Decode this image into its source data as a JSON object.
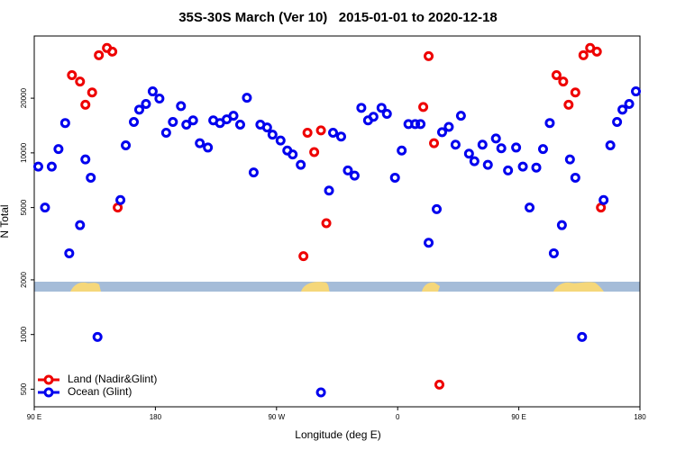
{
  "chart_data": {
    "type": "scatter",
    "title": "35S-30S March (Ver 10)   2015-01-01 to 2020-12-18",
    "xlabel": "Longitude (deg E)",
    "ylabel": "N Total",
    "log_y": true,
    "legend": "bottom-left",
    "xlim": [
      90,
      540
    ],
    "xticks": [
      {
        "value": 90,
        "label": "90 E"
      },
      {
        "value": 180,
        "label": "180"
      },
      {
        "value": 270,
        "label": "90 W"
      },
      {
        "value": 360,
        "label": "0"
      },
      {
        "value": 450,
        "label": "90 E"
      },
      {
        "value": 540,
        "label": "180"
      }
    ],
    "ylim": [
      400,
      44000
    ],
    "yticks": [
      500,
      1000,
      2000,
      5000,
      10000,
      20000
    ],
    "series": [
      {
        "name": "Land (Nadir&Glint)",
        "color": "#ee0000",
        "x": [
          118,
          124,
          128,
          133,
          138,
          144,
          148,
          152,
          290,
          293,
          298,
          303,
          307,
          379,
          383,
          387,
          391,
          478,
          483,
          487,
          492,
          498,
          503,
          508,
          511
        ],
        "values": [
          26800,
          24700,
          18400,
          21500,
          34500,
          37800,
          36100,
          5000,
          2700,
          12900,
          10100,
          13300,
          4100,
          17900,
          34100,
          11300,
          530,
          26800,
          24700,
          18400,
          21500,
          34500,
          37800,
          36100,
          5000
        ]
      },
      {
        "name": "Ocean (Glint)",
        "color": "#0000ee",
        "x": [
          93,
          98,
          103,
          108,
          113,
          116,
          124,
          128,
          132,
          137,
          154,
          158,
          164,
          168,
          173,
          178,
          183,
          188,
          193,
          199,
          203,
          208,
          213,
          219,
          223,
          228,
          233,
          238,
          243,
          248,
          253,
          258,
          263,
          267,
          273,
          278,
          282,
          288,
          303,
          309,
          312,
          318,
          323,
          328,
          333,
          338,
          342,
          348,
          352,
          358,
          363,
          368,
          373,
          377,
          383,
          389,
          393,
          398,
          403,
          407,
          413,
          417,
          423,
          427,
          433,
          437,
          442,
          448,
          453,
          458,
          463,
          468,
          473,
          476,
          482,
          488,
          492,
          497,
          513,
          518,
          523,
          527,
          532,
          537
        ],
        "values": [
          8400,
          5000,
          8400,
          10500,
          14600,
          2800,
          4000,
          9200,
          7300,
          970,
          5500,
          11000,
          14800,
          17300,
          18600,
          21800,
          19900,
          12900,
          14800,
          18100,
          14300,
          15100,
          11300,
          10700,
          15100,
          14600,
          15300,
          16000,
          14300,
          20100,
          7800,
          14300,
          13800,
          12600,
          11700,
          10300,
          9800,
          8600,
          480,
          6200,
          12900,
          12300,
          8000,
          7500,
          17700,
          15100,
          15800,
          17700,
          16400,
          7300,
          10300,
          14400,
          14400,
          14400,
          3200,
          4900,
          13000,
          13900,
          11100,
          16000,
          9900,
          9000,
          11100,
          8600,
          12000,
          10600,
          8000,
          10700,
          8400,
          5000,
          8300,
          10500,
          14600,
          2800,
          4000,
          9200,
          7300,
          970,
          5500,
          11000,
          14800,
          17300,
          18600,
          21800
        ]
      }
    ]
  }
}
